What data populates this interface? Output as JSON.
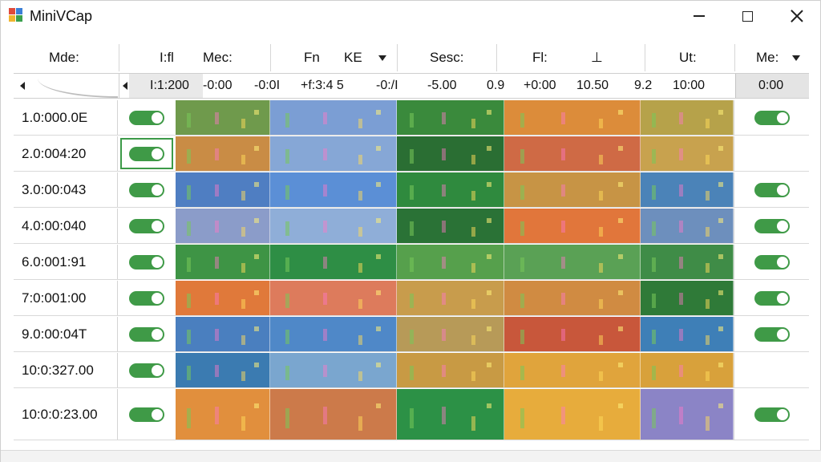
{
  "app": {
    "title": "MiniVCap"
  },
  "window_controls": {
    "minimize": "minimize",
    "maximize": "maximize",
    "close": "close"
  },
  "header": {
    "col1": "Mde:",
    "col2": "I:fl",
    "col3": "Mec:",
    "col4": "Fn",
    "col5": "KE",
    "col6": "Sesc:",
    "col7": "Fl:",
    "col8": "⊥",
    "col9": "Ut:",
    "col10": "Me:"
  },
  "timeline": {
    "values": [
      "I:1:200",
      "-0:00",
      "-0:0I",
      "+f:3:4 5",
      "-0:/I",
      "-5.00",
      "0.9",
      "+0:00",
      "10.50",
      "9.2",
      "10:00"
    ],
    "right_value": "0:00"
  },
  "rows": [
    {
      "label": "1.0:000.0E",
      "toggle_on": true,
      "selected": false,
      "right_toggle": true,
      "colors": [
        "#6f9a4c",
        "#7b9ed4",
        "#3a8a3c",
        "#dc8c3a",
        "#b6a24a"
      ]
    },
    {
      "label": "2.0:004:20",
      "toggle_on": true,
      "selected": true,
      "right_toggle": false,
      "colors": [
        "#c98c45",
        "#86a7d6",
        "#2a6e33",
        "#cf6a45",
        "#c8a24e"
      ]
    },
    {
      "label": "3.0:00:043",
      "toggle_on": true,
      "selected": false,
      "right_toggle": true,
      "colors": [
        "#4f7ec2",
        "#5b8fd6",
        "#2f8a3e",
        "#c79445",
        "#4b83b8"
      ]
    },
    {
      "label": "4.0:00:040",
      "toggle_on": true,
      "selected": false,
      "right_toggle": true,
      "colors": [
        "#8b9cc9",
        "#8faed8",
        "#2a7236",
        "#e1763b",
        "#6d8fbd"
      ]
    },
    {
      "label": "6.0:001:91",
      "toggle_on": true,
      "selected": false,
      "right_toggle": true,
      "colors": [
        "#3e9445",
        "#2e8e45",
        "#56a04c",
        "#5aa155",
        "#3f8c47"
      ]
    },
    {
      "label": "7:0:001:00",
      "toggle_on": true,
      "selected": false,
      "right_toggle": true,
      "colors": [
        "#e0793a",
        "#dd7b5c",
        "#c89c4c",
        "#d08b42",
        "#2f7a38"
      ]
    },
    {
      "label": "9.0:00:04T",
      "toggle_on": true,
      "selected": false,
      "right_toggle": true,
      "colors": [
        "#4a7fbf",
        "#4f88c8",
        "#b79a58",
        "#c8573b",
        "#3e7fb7"
      ]
    },
    {
      "label": "10:0:327.00",
      "toggle_on": true,
      "selected": false,
      "right_toggle": false,
      "colors": [
        "#3b7bb1",
        "#7aa6cf",
        "#c89a44",
        "#e0a43c",
        "#d8a13b"
      ]
    },
    {
      "label": "10:0:0:23.00",
      "toggle_on": true,
      "selected": false,
      "right_toggle": true,
      "colors": [
        "#e18f3d",
        "#cc7a4a",
        "#2c9146",
        "#e7ac3c",
        "#8b84c6"
      ]
    }
  ],
  "accent": {
    "toggle": "#3f9a47"
  }
}
